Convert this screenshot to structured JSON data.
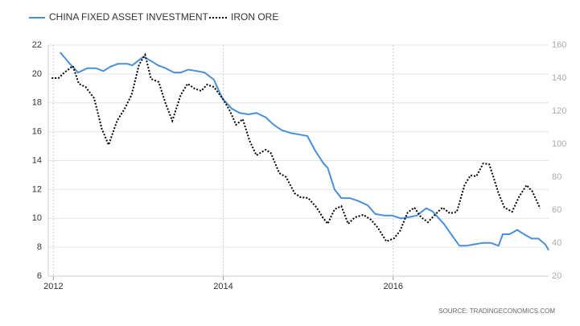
{
  "chart_data": {
    "type": "line",
    "xlim": [
      2011.94,
      2017.83
    ],
    "xticks": [
      2012,
      2014,
      2016
    ],
    "ylim": [
      6,
      22
    ],
    "yticks": [
      6,
      8,
      10,
      12,
      14,
      16,
      18,
      20,
      22
    ],
    "y2lim": [
      20,
      160
    ],
    "y2ticks": [
      20,
      40,
      60,
      80,
      100,
      120,
      140,
      160
    ],
    "grid": true,
    "legend": "top-left",
    "source": "SOURCE: TRADINGECONOMICS.COM",
    "series": [
      {
        "name": "CHINA FIXED ASSET INVESTMENT",
        "color": "#4a90d9",
        "style": "solid",
        "x": [
          2012.08,
          2012.18,
          2012.29,
          2012.4,
          2012.5,
          2012.59,
          2012.67,
          2012.76,
          2012.87,
          2012.93,
          2013.06,
          2013.15,
          2013.23,
          2013.32,
          2013.42,
          2013.5,
          2013.59,
          2013.69,
          2013.78,
          2013.89,
          2013.99,
          2014.1,
          2014.19,
          2014.3,
          2014.39,
          2014.5,
          2014.59,
          2014.69,
          2014.8,
          2014.9,
          2014.99,
          2015.08,
          2015.18,
          2015.23,
          2015.31,
          2015.39,
          2015.49,
          2015.59,
          2015.7,
          2015.79,
          2015.9,
          2015.99,
          2016.09,
          2016.2,
          2016.28,
          2016.39,
          2016.46,
          2016.6,
          2016.67,
          2016.78,
          2016.86,
          2016.96,
          2017.06,
          2017.15,
          2017.24,
          2017.29,
          2017.37,
          2017.46,
          2017.54,
          2017.63,
          2017.71,
          2017.79,
          2017.83
        ],
        "values": [
          21.5,
          20.8,
          20.1,
          20.4,
          20.4,
          20.2,
          20.5,
          20.7,
          20.7,
          20.6,
          21.2,
          20.9,
          20.6,
          20.4,
          20.1,
          20.1,
          20.3,
          20.2,
          20.1,
          19.6,
          18.3,
          17.6,
          17.3,
          17.2,
          17.3,
          17.0,
          16.5,
          16.1,
          15.9,
          15.8,
          15.7,
          14.7,
          13.8,
          13.5,
          12.0,
          11.4,
          11.4,
          11.2,
          10.9,
          10.3,
          10.2,
          10.2,
          10.0,
          10.1,
          10.2,
          10.7,
          10.5,
          9.6,
          9.0,
          8.1,
          8.1,
          8.2,
          8.3,
          8.3,
          8.1,
          8.9,
          8.9,
          9.2,
          8.9,
          8.6,
          8.6,
          8.2,
          7.8
        ]
      },
      {
        "name": "IRON ORE",
        "color": "#000000",
        "style": "dotted",
        "axis": "y2",
        "x": [
          2011.98,
          2012.06,
          2012.13,
          2012.23,
          2012.3,
          2012.38,
          2012.48,
          2012.57,
          2012.65,
          2012.75,
          2012.84,
          2012.92,
          2013.01,
          2013.08,
          2013.15,
          2013.24,
          2013.32,
          2013.4,
          2013.5,
          2013.58,
          2013.66,
          2013.74,
          2013.81,
          2013.89,
          2013.99,
          2014.08,
          2014.15,
          2014.23,
          2014.31,
          2014.39,
          2014.5,
          2014.56,
          2014.66,
          2014.74,
          2014.84,
          2014.91,
          2015.0,
          2015.1,
          2015.17,
          2015.23,
          2015.31,
          2015.39,
          2015.47,
          2015.55,
          2015.65,
          2015.74,
          2015.82,
          2015.92,
          2016.01,
          2016.08,
          2016.17,
          2016.25,
          2016.33,
          2016.41,
          2016.5,
          2016.58,
          2016.67,
          2016.75,
          2016.84,
          2016.91,
          2016.98,
          2017.06,
          2017.13,
          2017.18,
          2017.24,
          2017.31,
          2017.4,
          2017.48,
          2017.57,
          2017.64,
          2017.73
        ],
        "values": [
          140,
          140,
          143.4,
          147.3,
          136.6,
          134.6,
          127.8,
          109.3,
          99.5,
          114.1,
          121.5,
          129.8,
          148.3,
          154.1,
          139.5,
          137.6,
          124.9,
          114.1,
          129.8,
          136.6,
          133.7,
          132.2,
          136.1,
          134.6,
          127.8,
          120,
          111.7,
          115.1,
          102,
          93.2,
          96.6,
          94.6,
          82.4,
          80,
          70.2,
          67.8,
          67.3,
          61.5,
          55.6,
          51.7,
          60.5,
          62.4,
          51.7,
          55.6,
          57.1,
          54.1,
          49.3,
          41,
          42.9,
          47.3,
          58.5,
          61.5,
          55.6,
          52.7,
          57.6,
          61.5,
          58,
          59,
          75.1,
          81,
          80.5,
          88.3,
          87.8,
          80,
          70.2,
          61.5,
          59,
          67.8,
          75.1,
          71.2,
          61
        ]
      }
    ]
  }
}
